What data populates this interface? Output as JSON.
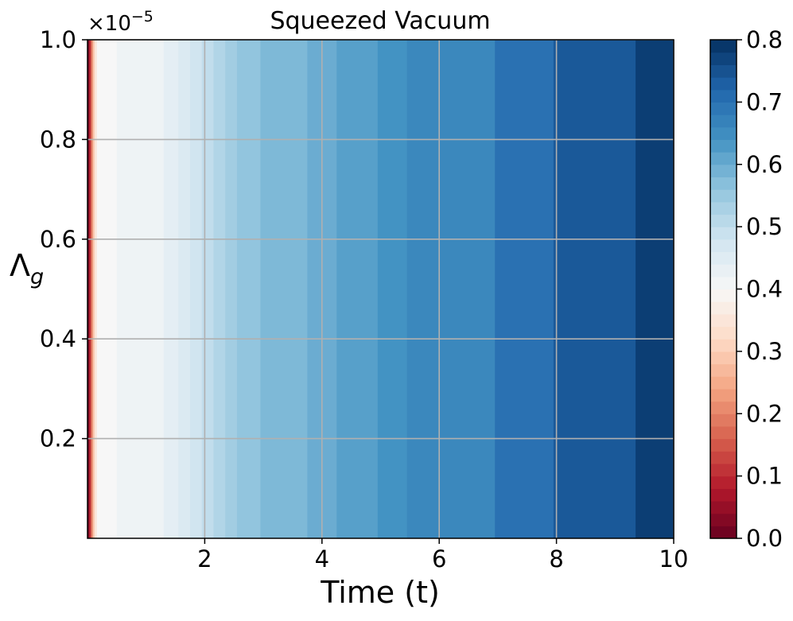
{
  "chart_data": {
    "type": "heatmap",
    "title": "Squeezed Vacuum",
    "xlabel": "Time (t)",
    "ylabel_main": "Λ",
    "ylabel_sub": "g",
    "y_offset_label": "×10",
    "y_offset_exponent": "−5",
    "xlim": [
      0,
      10
    ],
    "ylim": [
      0,
      1.0
    ],
    "x_ticks": [
      2,
      4,
      6,
      8,
      10
    ],
    "x_tick_labels": [
      "2",
      "4",
      "6",
      "8",
      "10"
    ],
    "y_ticks": [
      0.2,
      0.4,
      0.6,
      0.8,
      1.0
    ],
    "y_tick_labels": [
      "0.2",
      "0.4",
      "0.6",
      "0.8",
      "1.0"
    ],
    "grid": true,
    "colormap": "RdBu",
    "colorbar": {
      "range": [
        0.0,
        0.8
      ],
      "ticks": [
        0.0,
        0.1,
        0.2,
        0.3,
        0.4,
        0.5,
        0.6,
        0.7,
        0.8
      ],
      "tick_labels": [
        "0.0",
        "0.1",
        "0.2",
        "0.3",
        "0.4",
        "0.5",
        "0.6",
        "0.7",
        "0.8"
      ],
      "levels": 40
    },
    "note": "value varies only with time; constant along Λ_g",
    "bands": [
      {
        "x0": 0.0,
        "x1": 0.03,
        "value": 0.02
      },
      {
        "x0": 0.03,
        "x1": 0.06,
        "value": 0.1
      },
      {
        "x0": 0.06,
        "x1": 0.09,
        "value": 0.2
      },
      {
        "x0": 0.09,
        "x1": 0.12,
        "value": 0.29
      },
      {
        "x0": 0.12,
        "x1": 0.16,
        "value": 0.35
      },
      {
        "x0": 0.16,
        "x1": 0.5,
        "value": 0.4
      },
      {
        "x0": 0.5,
        "x1": 1.3,
        "value": 0.42
      },
      {
        "x0": 1.3,
        "x1": 1.55,
        "value": 0.44
      },
      {
        "x0": 1.55,
        "x1": 1.75,
        "value": 0.46
      },
      {
        "x0": 1.75,
        "x1": 1.95,
        "value": 0.48
      },
      {
        "x0": 1.95,
        "x1": 2.15,
        "value": 0.5
      },
      {
        "x0": 2.15,
        "x1": 2.35,
        "value": 0.52
      },
      {
        "x0": 2.35,
        "x1": 2.55,
        "value": 0.54
      },
      {
        "x0": 2.55,
        "x1": 2.95,
        "value": 0.56
      },
      {
        "x0": 2.95,
        "x1": 3.75,
        "value": 0.58
      },
      {
        "x0": 3.75,
        "x1": 4.25,
        "value": 0.6
      },
      {
        "x0": 4.25,
        "x1": 4.95,
        "value": 0.62
      },
      {
        "x0": 4.95,
        "x1": 5.45,
        "value": 0.64
      },
      {
        "x0": 5.45,
        "x1": 6.95,
        "value": 0.66
      },
      {
        "x0": 6.95,
        "x1": 7.95,
        "value": 0.7
      },
      {
        "x0": 7.95,
        "x1": 9.35,
        "value": 0.74
      },
      {
        "x0": 9.35,
        "x1": 10.0,
        "value": 0.78
      }
    ]
  }
}
